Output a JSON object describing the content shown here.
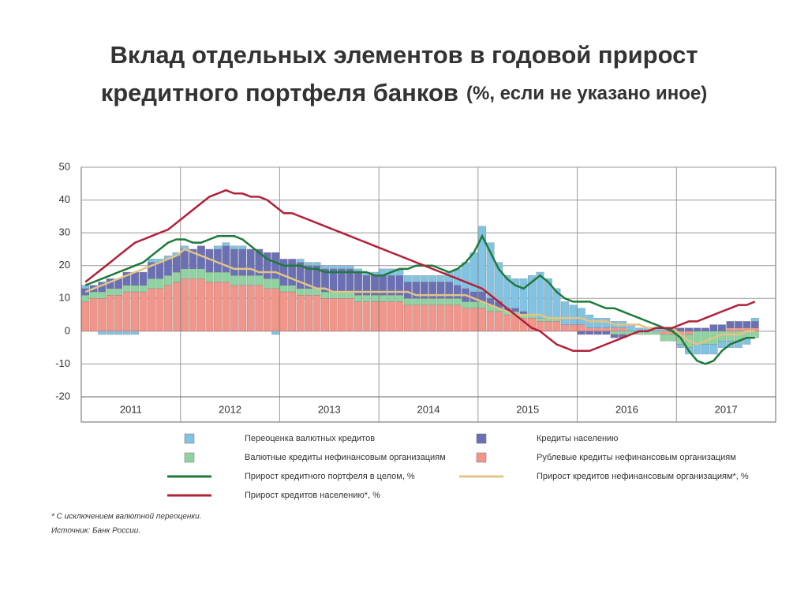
{
  "chart_data": {
    "type": "bar",
    "title": [
      "Вклад отдельных элементов в годовой прирост",
      "кредитного портфеля банков"
    ],
    "subtitle": "(%, если не указано иное)",
    "categories": [
      null,
      null,
      null,
      null,
      null,
      null,
      "2011",
      null,
      null,
      null,
      null,
      null,
      null,
      null,
      null,
      null,
      null,
      null,
      "2012",
      null,
      null,
      null,
      null,
      null,
      null,
      null,
      null,
      null,
      null,
      null,
      "2013",
      null,
      null,
      null,
      null,
      null,
      null,
      null,
      null,
      null,
      null,
      null,
      "2014",
      null,
      null,
      null,
      null,
      null,
      null,
      null,
      null,
      null,
      null,
      null,
      "2015",
      null,
      null,
      null,
      null,
      null,
      null,
      null,
      null,
      null,
      null,
      null,
      "2016",
      null,
      null,
      null,
      null,
      null,
      null,
      null,
      null,
      null,
      null,
      null,
      "2017",
      null,
      null,
      null
    ],
    "ylim": [
      -20,
      50
    ],
    "yticks": [
      -20,
      -10,
      0,
      10,
      20,
      30,
      40,
      50
    ],
    "grid": true,
    "series": [
      {
        "name": "Рублевые кредиты нефинансовым организациям",
        "type": "bar",
        "color": "#f2958a",
        "values": [
          9,
          10,
          10,
          11,
          11,
          12,
          12,
          12,
          13,
          13,
          14,
          15,
          16,
          16,
          16,
          15,
          15,
          15,
          14,
          14,
          14,
          14,
          13,
          13,
          12,
          12,
          11,
          11,
          11,
          10,
          10,
          10,
          10,
          9,
          9,
          9,
          9,
          9,
          9,
          8,
          8,
          8,
          8,
          8,
          8,
          8,
          7,
          7,
          7,
          6,
          6,
          5,
          5,
          4,
          4,
          3,
          3,
          3,
          2,
          2,
          2,
          1,
          1,
          1,
          1,
          1,
          0,
          0,
          0,
          0,
          -1,
          -1,
          -1,
          -1,
          0,
          0,
          0,
          0,
          1,
          1,
          1,
          1
        ]
      },
      {
        "name": "Валютные кредиты нефинансовым организациям",
        "type": "bar",
        "color": "#8fd3a0",
        "values": [
          2,
          2,
          2,
          2,
          2,
          2,
          2,
          2,
          3,
          3,
          3,
          3,
          3,
          3,
          3,
          3,
          3,
          3,
          3,
          3,
          3,
          3,
          3,
          3,
          2,
          2,
          2,
          2,
          2,
          2,
          2,
          2,
          2,
          2,
          2,
          2,
          2,
          2,
          2,
          2,
          2,
          2,
          2,
          2,
          2,
          2,
          2,
          2,
          2,
          2,
          1,
          1,
          1,
          1,
          1,
          1,
          1,
          1,
          0,
          0,
          0,
          0,
          0,
          0,
          -1,
          -1,
          -1,
          -1,
          -1,
          -1,
          -2,
          -2,
          -3,
          -4,
          -4,
          -4,
          -4,
          -3,
          -3,
          -3,
          -2,
          -2
        ]
      },
      {
        "name": "Кредиты населению",
        "type": "bar",
        "color": "#6b70b4",
        "values": [
          2,
          2,
          3,
          3,
          3,
          4,
          4,
          4,
          5,
          5,
          5,
          5,
          6,
          6,
          7,
          7,
          7,
          8,
          8,
          8,
          8,
          8,
          8,
          8,
          8,
          8,
          8,
          7,
          7,
          7,
          7,
          7,
          7,
          7,
          6,
          6,
          6,
          6,
          6,
          5,
          5,
          5,
          5,
          5,
          5,
          4,
          4,
          3,
          3,
          2,
          2,
          1,
          1,
          1,
          0,
          0,
          0,
          0,
          0,
          0,
          -1,
          -1,
          -1,
          -1,
          -1,
          -1,
          0,
          0,
          0,
          0,
          0,
          1,
          1,
          1,
          1,
          1,
          2,
          2,
          2,
          2,
          2,
          2
        ]
      },
      {
        "name": "Переоценка валютных кредитов",
        "type": "bar",
        "color": "#80c3e2",
        "values": [
          1,
          0,
          -1,
          -1,
          -1,
          -1,
          -1,
          0,
          1,
          1,
          1,
          1,
          1,
          0,
          0,
          0,
          1,
          1,
          1,
          1,
          0,
          0,
          0,
          -1,
          0,
          0,
          1,
          1,
          1,
          1,
          1,
          1,
          1,
          1,
          1,
          1,
          2,
          2,
          2,
          2,
          2,
          2,
          2,
          2,
          3,
          5,
          8,
          12,
          20,
          17,
          12,
          10,
          9,
          10,
          12,
          14,
          12,
          9,
          7,
          6,
          5,
          4,
          3,
          3,
          2,
          2,
          2,
          1,
          1,
          1,
          1,
          0,
          -1,
          -2,
          -3,
          -3,
          -3,
          -2,
          -2,
          -2,
          -2,
          1
        ]
      },
      {
        "name": "Прирост кредитного портфеля в целом, %",
        "type": "line",
        "color": "#1d7a3a",
        "values": [
          14,
          15,
          16,
          17,
          18,
          19,
          20,
          21,
          23,
          25,
          27,
          28,
          28,
          27,
          27,
          28,
          29,
          29,
          29,
          28,
          26,
          24,
          22,
          21,
          20,
          20,
          20,
          19,
          19,
          18,
          18,
          18,
          18,
          18,
          18,
          17,
          17,
          18,
          19,
          19,
          20,
          20,
          20,
          19,
          18,
          19,
          21,
          24,
          29,
          24,
          19,
          16,
          14,
          13,
          15,
          17,
          15,
          12,
          10,
          9,
          9,
          9,
          8,
          7,
          7,
          6,
          5,
          4,
          3,
          2,
          1,
          0,
          -2,
          -6,
          -9,
          -10,
          -9,
          -6,
          -4,
          -3,
          -2,
          -2
        ]
      },
      {
        "name": "Прирост кредитов нефинансовым организациям*, %",
        "type": "line",
        "color": "#e2c585",
        "values": [
          12,
          13,
          14,
          15,
          16,
          17,
          18,
          19,
          20,
          21,
          22,
          23,
          25,
          24,
          23,
          22,
          21,
          20,
          19,
          19,
          19,
          18,
          18,
          18,
          17,
          16,
          15,
          14,
          13,
          13,
          12,
          12,
          12,
          12,
          12,
          12,
          12,
          12,
          12,
          12,
          11,
          11,
          11,
          11,
          11,
          11,
          11,
          10,
          9,
          8,
          7,
          6,
          5,
          5,
          5,
          5,
          4,
          4,
          4,
          4,
          4,
          3,
          3,
          3,
          2,
          2,
          2,
          2,
          1,
          1,
          1,
          1,
          -1,
          -3,
          -4,
          -3,
          -2,
          -1,
          -1,
          -1,
          0,
          0
        ]
      },
      {
        "name": "Прирост кредитов населению*, %",
        "type": "line",
        "color": "#b22038",
        "values": [
          15,
          17,
          19,
          21,
          23,
          25,
          27,
          28,
          29,
          30,
          31,
          33,
          35,
          37,
          39,
          41,
          42,
          43,
          42,
          42,
          41,
          41,
          40,
          38,
          36,
          36,
          35,
          34,
          33,
          32,
          31,
          30,
          29,
          28,
          27,
          26,
          25,
          24,
          23,
          22,
          21,
          20,
          19,
          18,
          17,
          16,
          15,
          14,
          13,
          11,
          9,
          7,
          5,
          3,
          1,
          0,
          -2,
          -4,
          -5,
          -6,
          -6,
          -6,
          -5,
          -4,
          -3,
          -2,
          -1,
          0,
          0,
          1,
          1,
          1,
          2,
          3,
          3,
          4,
          5,
          6,
          7,
          8,
          8,
          9
        ]
      }
    ],
    "notes": [
      "* С исключением валютной переоценки.",
      "Источник: Банк России."
    ]
  }
}
